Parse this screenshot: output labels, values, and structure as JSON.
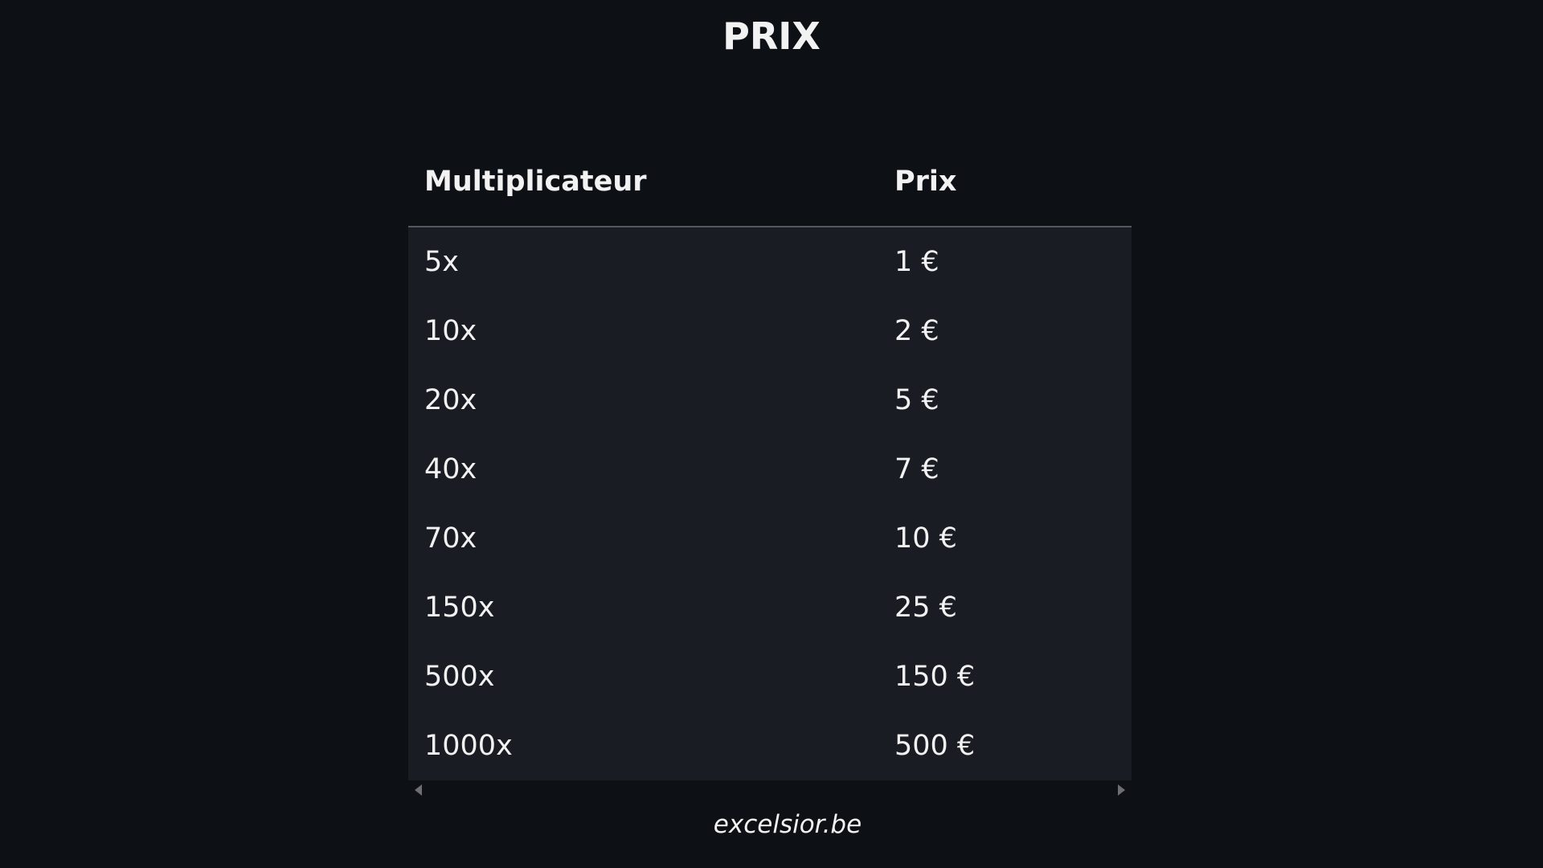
{
  "title": "PRIX",
  "table": {
    "headers": [
      "Multiplicateur",
      "Prix"
    ],
    "rows": [
      [
        "5x",
        "1 €"
      ],
      [
        "10x",
        "2 €"
      ],
      [
        "20x",
        "5 €"
      ],
      [
        "40x",
        "7 €"
      ],
      [
        "70x",
        "10 €"
      ],
      [
        "150x",
        "25 €"
      ],
      [
        "500x",
        "150 €"
      ],
      [
        "1000x",
        "500 €"
      ]
    ]
  },
  "footer": "excelsior.be",
  "colors": {
    "background": "#0d1116",
    "table_body": "#191c23",
    "text": "#f2f2f2"
  }
}
